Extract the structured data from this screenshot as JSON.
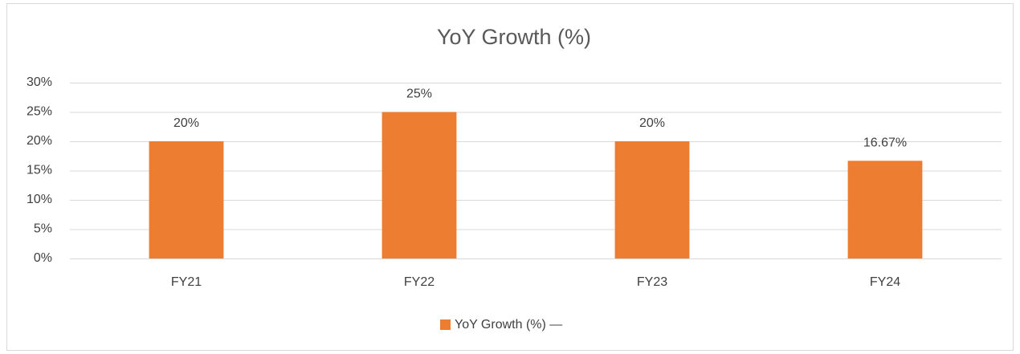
{
  "chart_data": {
    "type": "bar",
    "title": "YoY Growth (%)",
    "categories": [
      "FY21",
      "FY22",
      "FY23",
      "FY24"
    ],
    "series": [
      {
        "name": "YoY Growth (%) —",
        "color": "#ed7d31",
        "values": [
          20,
          25,
          20,
          16.67
        ],
        "value_labels": [
          "20%",
          "25%",
          "20%",
          "16.67%"
        ]
      }
    ],
    "ylim": [
      0,
      30
    ],
    "yticks": [
      {
        "value": 0,
        "label": "0%"
      },
      {
        "value": 5,
        "label": "5%"
      },
      {
        "value": 10,
        "label": "10%"
      },
      {
        "value": 15,
        "label": "15%"
      },
      {
        "value": 20,
        "label": "20%"
      },
      {
        "value": 25,
        "label": "25%"
      },
      {
        "value": 30,
        "label": "30%"
      }
    ],
    "grid": true,
    "legend": "bottom"
  }
}
